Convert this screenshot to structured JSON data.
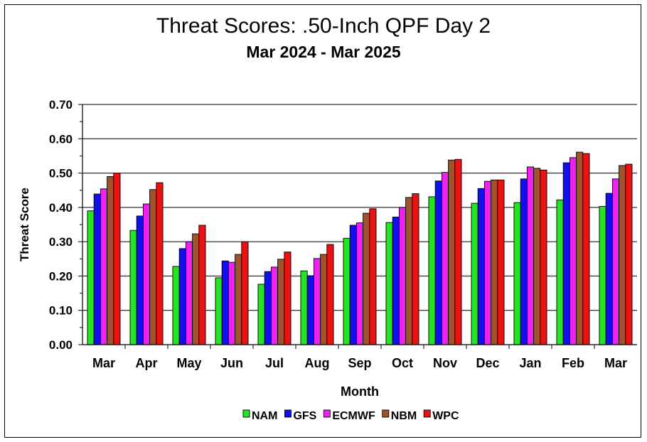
{
  "title": "Threat Scores:  .50-Inch QPF Day 2",
  "subtitle": "Mar 2024 - Mar 2025",
  "chart_data": {
    "type": "bar",
    "xlabel": "Month",
    "ylabel": "Threat Score",
    "ylim": [
      0,
      0.7
    ],
    "yticks": [
      "0.00",
      "0.10",
      "0.20",
      "0.30",
      "0.40",
      "0.50",
      "0.60",
      "0.70"
    ],
    "grid": "horizontal",
    "legend_position": "bottom",
    "categories": [
      "Mar",
      "Apr",
      "May",
      "Jun",
      "Jul",
      "Aug",
      "Sep",
      "Oct",
      "Nov",
      "Dec",
      "Jan",
      "Feb",
      "Mar"
    ],
    "series": [
      {
        "name": "NAM",
        "color": "#22e622",
        "values": [
          0.39,
          0.333,
          0.228,
          0.195,
          0.176,
          0.215,
          0.31,
          0.356,
          0.431,
          0.412,
          0.414,
          0.422,
          0.403
        ]
      },
      {
        "name": "GFS",
        "color": "#1010ee",
        "values": [
          0.439,
          0.375,
          0.28,
          0.244,
          0.213,
          0.201,
          0.348,
          0.372,
          0.477,
          0.455,
          0.483,
          0.53,
          0.441
        ]
      },
      {
        "name": "ECMWF",
        "color": "#ee22ee",
        "values": [
          0.454,
          0.41,
          0.3,
          0.24,
          0.226,
          0.251,
          0.355,
          0.4,
          0.502,
          0.476,
          0.518,
          0.545,
          0.483
        ]
      },
      {
        "name": "NBM",
        "color": "#a0522d",
        "values": [
          0.49,
          0.452,
          0.323,
          0.263,
          0.249,
          0.263,
          0.383,
          0.429,
          0.538,
          0.48,
          0.514,
          0.561,
          0.522
        ]
      },
      {
        "name": "WPC",
        "color": "#ee1111",
        "values": [
          0.5,
          0.472,
          0.348,
          0.3,
          0.27,
          0.292,
          0.396,
          0.44,
          0.54,
          0.48,
          0.509,
          0.557,
          0.526
        ]
      }
    ]
  }
}
